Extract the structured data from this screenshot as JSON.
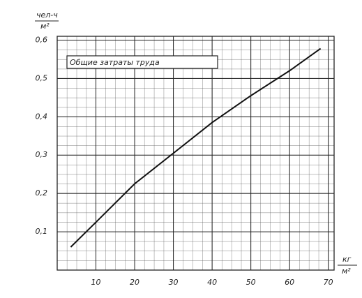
{
  "chart_data": {
    "type": "line",
    "annotation": "Общие затраты труда",
    "ylabel": {
      "numerator": "чел-ч",
      "denominator": "м²"
    },
    "xlabel": {
      "numerator": "кг",
      "denominator": "м²"
    },
    "series": [
      {
        "name": "Общие затраты труда",
        "color": "#111111",
        "x": [
          3.5,
          10,
          20,
          30,
          40,
          50,
          60,
          68
        ],
        "values": [
          0.06,
          0.125,
          0.225,
          0.305,
          0.385,
          0.455,
          0.52,
          0.578
        ]
      }
    ],
    "xlim": [
      0,
      71.5
    ],
    "xticks": [
      10,
      20,
      30,
      40,
      50,
      60,
      70
    ],
    "ylim": [
      0,
      0.61
    ],
    "yticks": [
      {
        "value": 0.1,
        "label": "0,1"
      },
      {
        "value": 0.2,
        "label": "0,2"
      },
      {
        "value": 0.3,
        "label": "0,3"
      },
      {
        "value": 0.4,
        "label": "0,4"
      },
      {
        "value": 0.5,
        "label": "0,5"
      },
      {
        "value": 0.6,
        "label": "0,6"
      }
    ],
    "grid": true
  }
}
